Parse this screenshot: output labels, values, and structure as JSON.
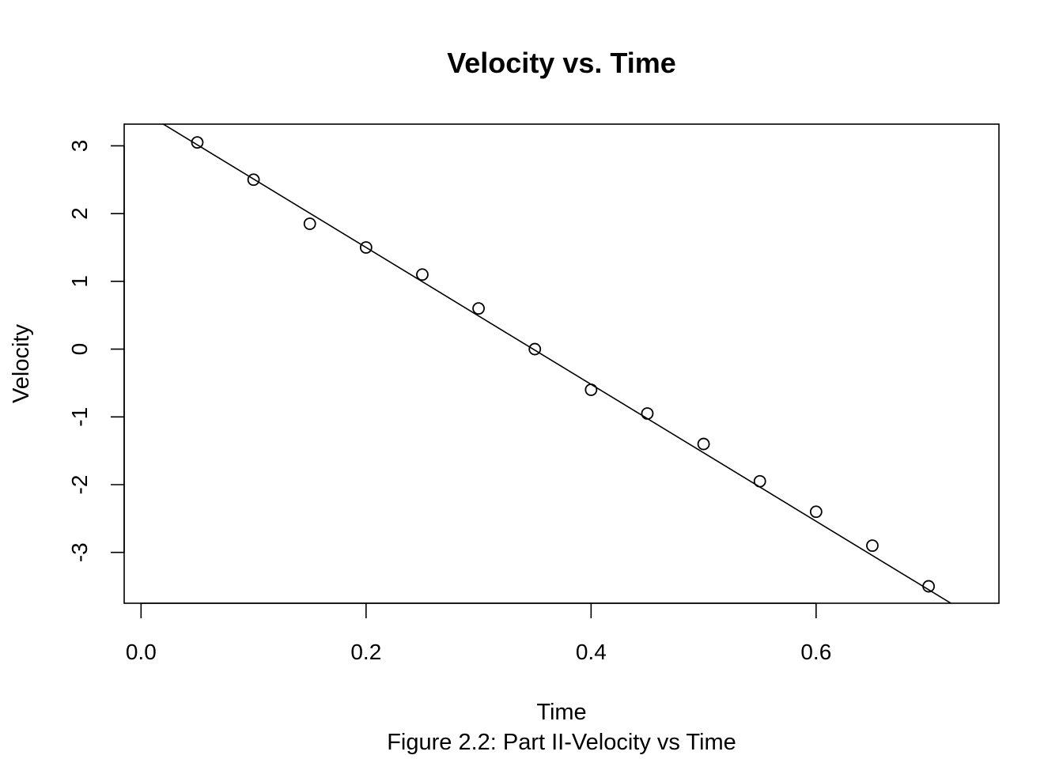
{
  "chart_data": {
    "type": "scatter",
    "title": "Velocity vs. Time",
    "xlabel": "Time",
    "ylabel": "Velocity",
    "caption": "Figure 2.2: Part II-Velocity vs Time",
    "xlim": [
      -0.015,
      0.7625
    ],
    "ylim": [
      -3.75,
      3.32
    ],
    "x_ticks": [
      0.0,
      0.2,
      0.4,
      0.6
    ],
    "x_tick_labels": [
      "0.0",
      "0.2",
      "0.4",
      "0.6"
    ],
    "y_ticks": [
      3,
      2,
      1,
      0,
      -1,
      -2,
      -3
    ],
    "y_tick_labels": [
      "3",
      "2",
      "1",
      "0",
      "-1",
      "-2",
      "-3"
    ],
    "grid": false,
    "legend": "none",
    "series": [
      {
        "x": [
          0.05,
          0.1,
          0.15,
          0.2,
          0.25,
          0.3,
          0.35,
          0.4,
          0.45,
          0.5,
          0.55,
          0.6,
          0.65,
          0.7
        ],
        "y": [
          3.05,
          2.5,
          1.85,
          1.5,
          1.1,
          0.6,
          0.0,
          -0.6,
          -0.95,
          -1.4,
          -1.95,
          -2.4,
          -2.9,
          -3.5
        ]
      }
    ],
    "fit_line": {
      "slope": -10.1,
      "intercept": 3.52
    },
    "colors": {
      "points": "#000000",
      "line": "#000000",
      "frame": "#000000"
    }
  }
}
